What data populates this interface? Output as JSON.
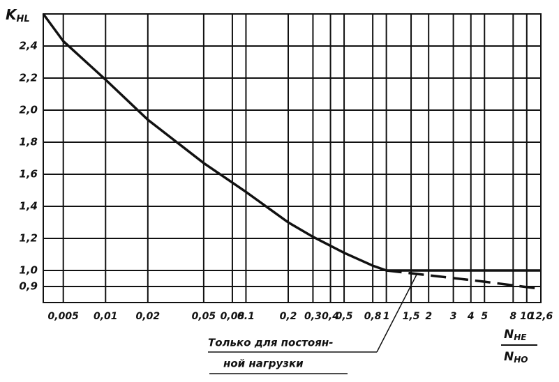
{
  "chart_data": {
    "type": "line",
    "y_label": {
      "main": "K",
      "sub": "HL"
    },
    "x_label": {
      "numerator": "N",
      "numerator_sub": "HE",
      "denominator": "N",
      "denominator_sub": "HO"
    },
    "annotation": {
      "lines": [
        "Только для постоян-",
        "ной нагрузки"
      ]
    },
    "log_x": true,
    "grid": true,
    "color": "#111111",
    "xlim": [
      0.0036,
      12.6
    ],
    "ylim": [
      0.8,
      2.6
    ],
    "xticks": [
      {
        "value": 0.005,
        "label": "0,005"
      },
      {
        "value": 0.01,
        "label": "0,01"
      },
      {
        "value": 0.02,
        "label": "0,02"
      },
      {
        "value": 0.05,
        "label": "0,05"
      },
      {
        "value": 0.08,
        "label": "0,08"
      },
      0.1,
      {
        "value": 0.2,
        "label": "0,2"
      },
      {
        "value": 0.3,
        "label": "0,3"
      },
      {
        "value": 0.4,
        "label": "0,4"
      },
      {
        "value": 0.5,
        "label": "0,5"
      },
      {
        "value": 0.8,
        "label": "0,8"
      },
      1,
      {
        "value": 1.5,
        "label": "1,5"
      },
      2,
      3,
      4,
      5,
      8,
      10,
      {
        "value": 12.6,
        "label": "12,6"
      }
    ],
    "yticks": [
      {
        "value": 0.9,
        "label": "0,9"
      },
      {
        "value": 1.0,
        "label": "1,0"
      },
      {
        "value": 1.2,
        "label": "1,2"
      },
      {
        "value": 1.4,
        "label": "1,4"
      },
      {
        "value": 1.6,
        "label": "1,6"
      },
      {
        "value": 1.8,
        "label": "1,8"
      },
      {
        "value": 2.0,
        "label": "2,0"
      },
      {
        "value": 2.2,
        "label": "2,2"
      },
      {
        "value": 2.4,
        "label": "2,4"
      }
    ],
    "series": [
      {
        "style": "solid",
        "x": [
          0.0036,
          0.005,
          0.01,
          0.02,
          0.05,
          0.1,
          0.2,
          0.3,
          0.5,
          0.8,
          1
        ],
        "values": [
          2.6,
          2.43,
          2.19,
          1.94,
          1.67,
          1.49,
          1.3,
          1.21,
          1.11,
          1.03,
          1.0
        ]
      },
      {
        "style": "solid",
        "x": [
          1,
          12.6
        ],
        "values": [
          1.0,
          1.0
        ]
      },
      {
        "style": "dashed",
        "x": [
          1,
          2,
          5,
          12.6
        ],
        "values": [
          1.0,
          0.97,
          0.93,
          0.885
        ]
      }
    ]
  }
}
